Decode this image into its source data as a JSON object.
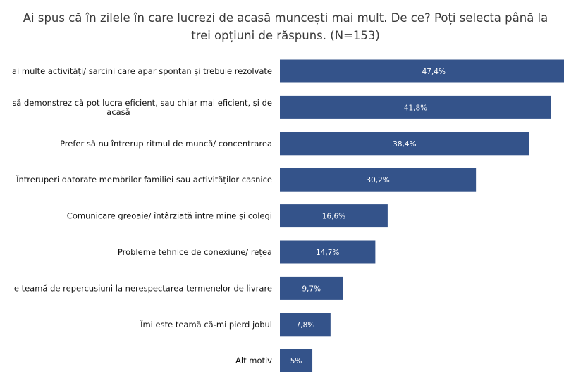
{
  "chart_data": {
    "type": "bar",
    "orientation": "horizontal",
    "title_lines": [
      "Ai spus că în zilele în care lucrezi de acasă muncești mai mult. De ce? Poți selecta până la",
      "trei opțiuni de răspuns. (N=153)"
    ],
    "categories": [
      [
        "ai multe activități/ sarcini care apar spontan și trebuie rezolvate"
      ],
      [
        "să demonstrez că pot lucra eficient, sau chiar mai eficient, și de",
        "acasă"
      ],
      [
        "Prefer să nu întrerup ritmul de muncă/ concentrarea"
      ],
      [
        "Întreruperi datorate membrilor familiei sau activităților casnice"
      ],
      [
        "Comunicare greoaie/ întârziată între mine și colegi"
      ],
      [
        "Probleme tehnice de conexiune/ rețea"
      ],
      [
        "e teamă de repercusiuni la nerespectarea termenelor de livrare"
      ],
      [
        "Îmi este teamă că-mi pierd jobul"
      ],
      [
        "Alt motiv"
      ]
    ],
    "values": [
      47.4,
      41.8,
      38.4,
      30.2,
      16.6,
      14.7,
      9.7,
      7.8,
      5
    ],
    "data_labels": [
      "47,4%",
      "41,8%",
      "38,4%",
      "30,2%",
      "16,6%",
      "14,7%",
      "9,7%",
      "7,8%",
      "5%"
    ],
    "unit": "%",
    "bar_color": "#34538a",
    "xlabel": "",
    "ylabel": "",
    "grid": false
  }
}
